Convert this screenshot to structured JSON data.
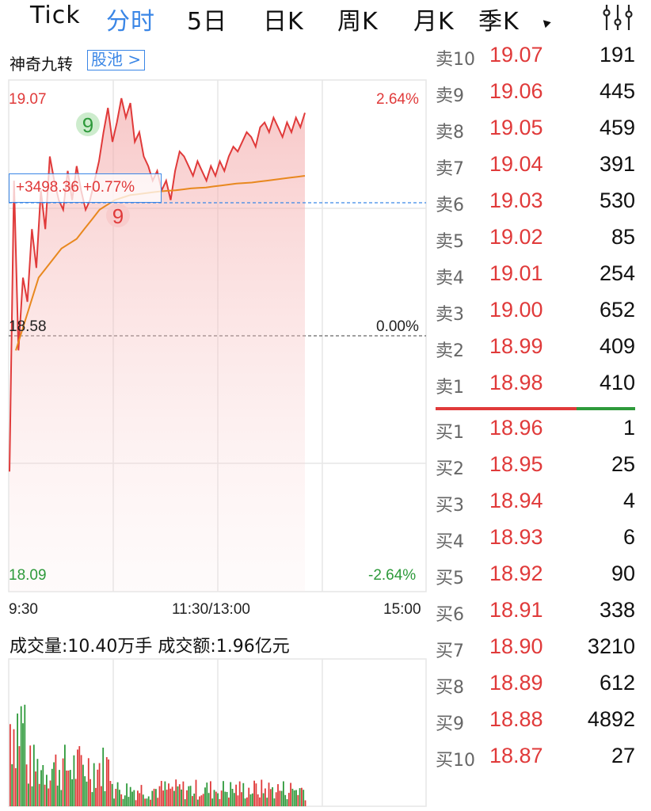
{
  "tabs": [
    {
      "label": "Tick",
      "active": false
    },
    {
      "label": "分时",
      "active": true
    },
    {
      "label": "5日",
      "active": false
    },
    {
      "label": "日K",
      "active": false
    },
    {
      "label": "周K",
      "active": false
    },
    {
      "label": "月K",
      "active": false
    },
    {
      "label": "季K",
      "active": false
    }
  ],
  "icons": {
    "more": "triangle-down-icon",
    "settings": "sliders-icon"
  },
  "indicator": {
    "name": "神奇九转",
    "pool_link": "股池 >"
  },
  "colors": {
    "up": "#e03a3a",
    "down": "#2e9a3b",
    "accent": "#3a86e6",
    "avg_line": "#e8881f"
  },
  "price_axis": {
    "high": "19.07",
    "mid": "18.58",
    "low": "18.09",
    "high_pct": "2.64%",
    "mid_pct": "0.00%",
    "low_pct": "-2.64%"
  },
  "time_axis": {
    "start": "9:30",
    "mid": "11:30/13:00",
    "end": "15:00"
  },
  "crosshair": {
    "text": "+3498.36 +0.77%"
  },
  "nine_turn": {
    "top": "9",
    "bottom": "9"
  },
  "volume": {
    "summary": "成交量:10.40万手  成交额:1.96亿元"
  },
  "chart_data": {
    "type": "line",
    "title": "",
    "prev_close": 18.58,
    "ylim": [
      18.09,
      19.07
    ],
    "x_range": [
      "9:30",
      "15:00"
    ],
    "series": [
      {
        "name": "",
        "color": "#e03a3a",
        "values": [
          18.3,
          18.9,
          18.55,
          18.7,
          18.65,
          18.8,
          18.72,
          18.88,
          18.8,
          18.95,
          18.9,
          18.86,
          18.84,
          18.92,
          18.86,
          18.93,
          18.88,
          18.84,
          18.86,
          18.9,
          18.94,
          19.0,
          19.05,
          18.98,
          19.02,
          19.07,
          19.03,
          19.06,
          18.98,
          19.0,
          18.95,
          18.93,
          18.9,
          18.92,
          18.88,
          18.9,
          18.86,
          18.92,
          18.96,
          18.95,
          18.93,
          18.91,
          18.94,
          18.92,
          18.9,
          18.93,
          18.91,
          18.94,
          18.92,
          18.95,
          18.97,
          18.96,
          18.98,
          19.0,
          18.99,
          18.97,
          19.01,
          19.02,
          19.0,
          19.03,
          19.01,
          18.99,
          19.02,
          19.0,
          19.03,
          19.01,
          19.04
        ]
      },
      {
        "name": "",
        "color": "#e8881f",
        "values": [
          18.55,
          18.6,
          18.65,
          18.7,
          18.72,
          18.74,
          18.76,
          18.77,
          18.78,
          18.8,
          18.82,
          18.84,
          18.85,
          18.86,
          18.865,
          18.87,
          18.872,
          18.874,
          18.876,
          18.878,
          18.879,
          18.88,
          18.882,
          18.884,
          18.885,
          18.886,
          18.888,
          18.89,
          18.892,
          18.894,
          18.895,
          18.896,
          18.898,
          18.9,
          18.902,
          18.904,
          18.906,
          18.908,
          18.91
        ]
      }
    ]
  },
  "order_book": {
    "asks": [
      {
        "label": "卖10",
        "price": "19.07",
        "volume": "191"
      },
      {
        "label": "卖9",
        "price": "19.06",
        "volume": "445"
      },
      {
        "label": "卖8",
        "price": "19.05",
        "volume": "459"
      },
      {
        "label": "卖7",
        "price": "19.04",
        "volume": "391"
      },
      {
        "label": "卖6",
        "price": "19.03",
        "volume": "530"
      },
      {
        "label": "卖5",
        "price": "19.02",
        "volume": "85"
      },
      {
        "label": "卖4",
        "price": "19.01",
        "volume": "254"
      },
      {
        "label": "卖3",
        "price": "19.00",
        "volume": "652"
      },
      {
        "label": "卖2",
        "price": "18.99",
        "volume": "409"
      },
      {
        "label": "卖1",
        "price": "18.98",
        "volume": "410"
      }
    ],
    "bids": [
      {
        "label": "买1",
        "price": "18.96",
        "volume": "1"
      },
      {
        "label": "买2",
        "price": "18.95",
        "volume": "25"
      },
      {
        "label": "买3",
        "price": "18.94",
        "volume": "4"
      },
      {
        "label": "买4",
        "price": "18.93",
        "volume": "6"
      },
      {
        "label": "买5",
        "price": "18.92",
        "volume": "90"
      },
      {
        "label": "买6",
        "price": "18.91",
        "volume": "338"
      },
      {
        "label": "买7",
        "price": "18.90",
        "volume": "3210"
      },
      {
        "label": "买8",
        "price": "18.89",
        "volume": "612"
      },
      {
        "label": "买9",
        "price": "18.88",
        "volume": "4892"
      },
      {
        "label": "买10",
        "price": "18.87",
        "volume": "27"
      }
    ]
  }
}
